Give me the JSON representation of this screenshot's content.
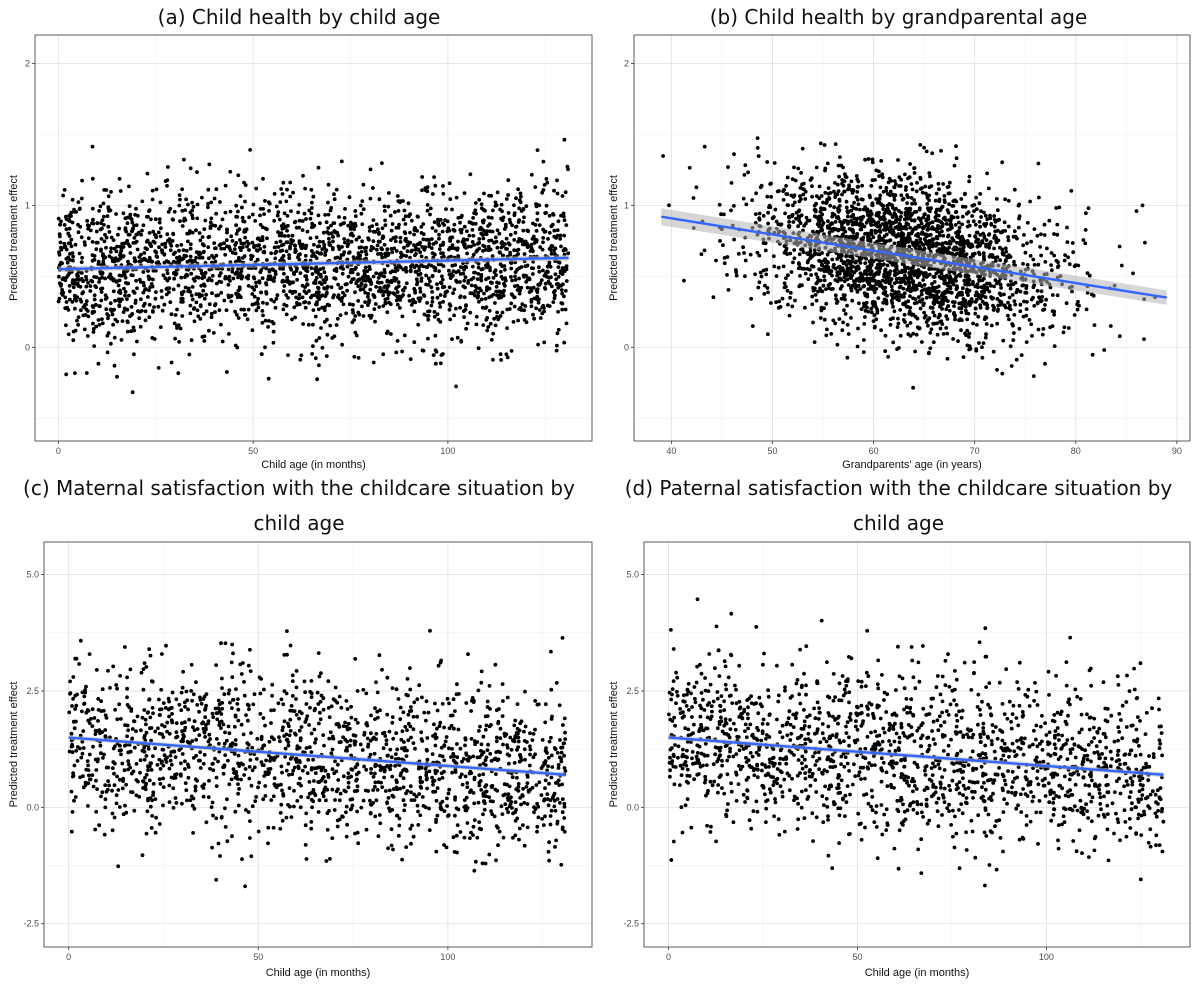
{
  "chart_data": [
    {
      "type": "scatter",
      "title": "(a) Child health by child age",
      "xlabel": "Child age (in months)",
      "ylabel": "Predicted treatment effect",
      "xlim": [
        -6,
        137
      ],
      "ylim": [
        -0.66,
        2.2
      ],
      "xticks": [
        0,
        50,
        100
      ],
      "yticks": [
        0,
        1,
        2
      ],
      "xtick_labels": [
        "0",
        "50",
        "100"
      ],
      "ytick_labels": [
        "0",
        "1",
        "2"
      ],
      "grid": true,
      "n_points": 2600,
      "point_x_range": [
        0,
        131
      ],
      "point_y_center": [
        0.55,
        0.62
      ],
      "point_y_sd": 0.27,
      "trend": {
        "x": [
          0,
          131
        ],
        "y": [
          0.55,
          0.63
        ],
        "ci_halfwidth": [
          0.02,
          0.02
        ]
      },
      "point_color": "#000000",
      "line_color": "#3366ff"
    },
    {
      "type": "scatter",
      "title": "(b) Child health by grandparental age",
      "xlabel": "Grandparents' age (in years)",
      "ylabel": "Predicted treatment effect",
      "xlim": [
        36.3,
        91.3
      ],
      "ylim": [
        -0.66,
        2.2
      ],
      "xticks": [
        40,
        50,
        60,
        70,
        80,
        90
      ],
      "yticks": [
        0,
        1,
        2
      ],
      "xtick_labels": [
        "40",
        "50",
        "60",
        "70",
        "80",
        "90"
      ],
      "ytick_labels": [
        "0",
        "1",
        "2"
      ],
      "grid": true,
      "n_points": 2600,
      "point_x_range": [
        39,
        89
      ],
      "point_x_center": 63,
      "point_x_sd": 7.5,
      "point_y_center": [
        0.92,
        0.35
      ],
      "point_y_sd": 0.27,
      "trend": {
        "x": [
          39,
          89
        ],
        "y": [
          0.92,
          0.35
        ],
        "ci_halfwidth": [
          0.06,
          0.05
        ]
      },
      "point_color": "#000000",
      "line_color": "#3366ff"
    },
    {
      "type": "scatter",
      "title": "(c) Maternal satisfaction with the childcare situation by child age",
      "xlabel": "Child age (in months)",
      "ylabel": "Predicted treatment effect",
      "xlim": [
        -6.5,
        138
      ],
      "ylim": [
        -3.0,
        5.7
      ],
      "xticks": [
        0,
        50,
        100
      ],
      "yticks": [
        -2.5,
        0,
        2.5,
        5
      ],
      "xtick_labels": [
        "0",
        "50",
        "100"
      ],
      "ytick_labels": [
        "-2.5",
        "0.0",
        "2.5",
        "5.0"
      ],
      "grid": true,
      "n_points": 1700,
      "point_x_range": [
        0,
        131
      ],
      "point_y_center": [
        1.5,
        0.7
      ],
      "point_y_sd": 0.9,
      "trend": {
        "x": [
          0,
          131
        ],
        "y": [
          1.5,
          0.7
        ],
        "ci_halfwidth": [
          0.05,
          0.05
        ]
      },
      "point_color": "#000000",
      "line_color": "#3366ff"
    },
    {
      "type": "scatter",
      "title": "(d) Paternal satisfaction with the childcare situation by child age",
      "xlabel": "Child age (in months)",
      "ylabel": "Predicted treatment effect",
      "xlim": [
        -6.5,
        138
      ],
      "ylim": [
        -3.0,
        5.7
      ],
      "xticks": [
        0,
        50,
        100
      ],
      "yticks": [
        -2.5,
        0,
        2.5,
        5
      ],
      "xtick_labels": [
        "0",
        "50",
        "100"
      ],
      "ytick_labels": [
        "-2.5",
        "0.0",
        "2.5",
        "5.0"
      ],
      "grid": true,
      "n_points": 1700,
      "point_x_range": [
        0,
        131
      ],
      "point_y_center": [
        1.5,
        0.7
      ],
      "point_y_sd": 0.9,
      "trend": {
        "x": [
          0,
          131
        ],
        "y": [
          1.5,
          0.7
        ],
        "ci_halfwidth": [
          0.05,
          0.05
        ]
      },
      "point_color": "#000000",
      "line_color": "#3366ff"
    }
  ]
}
